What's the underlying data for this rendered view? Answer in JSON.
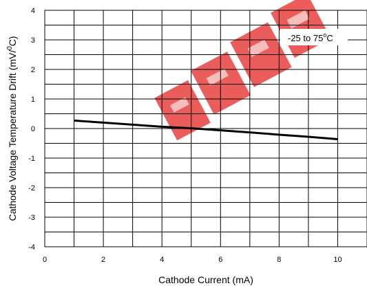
{
  "chart_data": {
    "type": "line",
    "title": "",
    "xlabel": "Cathode Current (mA)",
    "ylabel_prefix": "Cathode Voltage Temperature Drift (mV/",
    "ylabel_sup": "0",
    "ylabel_suffix": "C)",
    "xlim": [
      0,
      11
    ],
    "ylim": [
      -4,
      4
    ],
    "x_ticks": [
      0,
      2,
      4,
      6,
      8,
      10
    ],
    "y_ticks": [
      -4,
      -3,
      -2,
      -1,
      0,
      1,
      2,
      3,
      4
    ],
    "grid": true,
    "series": [
      {
        "x": [
          1,
          2,
          3,
          4,
          5,
          6,
          7,
          8,
          9,
          10
        ],
        "y": [
          0.27,
          0.2,
          0.13,
          0.06,
          0.01,
          -0.06,
          -0.13,
          -0.21,
          -0.28,
          -0.36
        ]
      }
    ],
    "annotation": {
      "prefix": "-25 to 75",
      "sup": "o",
      "suffix": "C"
    }
  },
  "colors": {
    "line": "#000000",
    "grid": "#000000",
    "watermark": "#e8413f"
  }
}
